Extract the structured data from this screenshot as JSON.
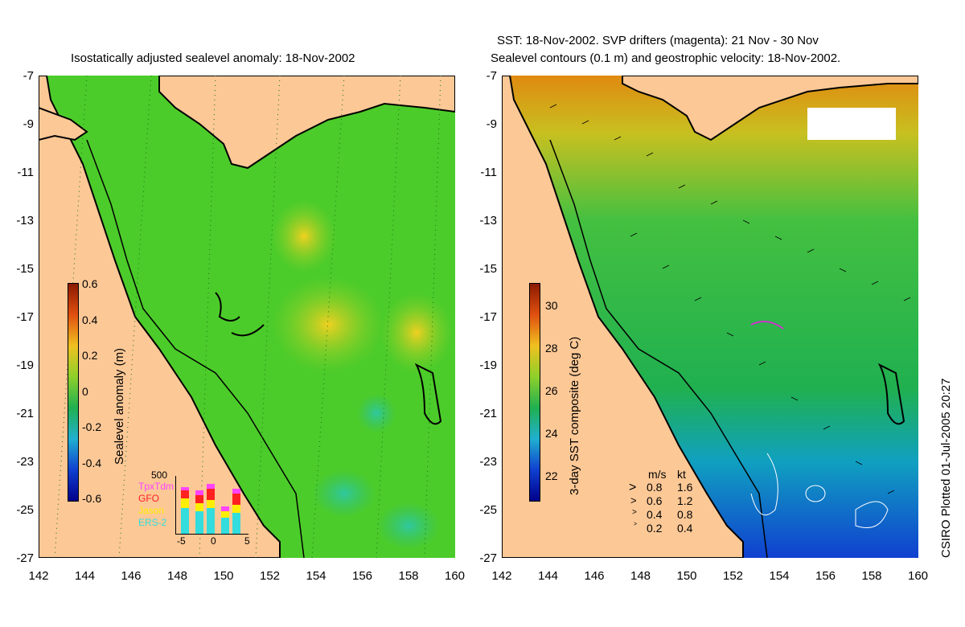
{
  "left_panel": {
    "title": "Isostatically adjusted sealevel anomaly: 18-Nov-2002",
    "colorbar": {
      "label": "Sealevel anomaly (m)",
      "ticks": [
        "0.6",
        "0.4",
        "0.2",
        "0",
        "-0.2",
        "-0.4",
        "-0.6"
      ]
    },
    "inset": {
      "ymax_label": "500",
      "missions": [
        {
          "name": "TpxTdm",
          "color": "#ff44ff"
        },
        {
          "name": "GFO",
          "color": "#ff2020"
        },
        {
          "name": "Jason",
          "color": "#ffee00"
        },
        {
          "name": "ERS-2",
          "color": "#33dddd"
        }
      ],
      "xticks": [
        "-5",
        "0",
        "5"
      ]
    }
  },
  "right_panel": {
    "title_line1": "SST: 18-Nov-2002. SVP drifters (magenta): 21 Nov - 30 Nov",
    "title_line2": "Sealevel contours (0.1 m) and geostrophic velocity: 18-Nov-2002.",
    "colorbar": {
      "label": "3-day SST composite (deg C)",
      "ticks": [
        "30",
        "28",
        "26",
        "24",
        "22"
      ]
    },
    "velocity_legend": {
      "header_ms": "m/s",
      "header_kt": "kt",
      "rows": [
        {
          "ms": "0.8",
          "kt": "1.6"
        },
        {
          "ms": "0.6",
          "kt": "1.2"
        },
        {
          "ms": "0.4",
          "kt": "0.8"
        },
        {
          "ms": "0.2",
          "kt": "0.4"
        }
      ]
    }
  },
  "axes": {
    "lat_ticks": [
      "-7",
      "-9",
      "-11",
      "-13",
      "-15",
      "-17",
      "-19",
      "-21",
      "-23",
      "-25",
      "-27"
    ],
    "lon_ticks": [
      "142",
      "144",
      "146",
      "148",
      "150",
      "152",
      "154",
      "156",
      "158",
      "160"
    ]
  },
  "credit": "CSIRO Plotted 01-Jul-2005 20:27",
  "colors": {
    "land": "#fcc896",
    "ocean_green": "#33cc33",
    "coast": "#000000"
  }
}
